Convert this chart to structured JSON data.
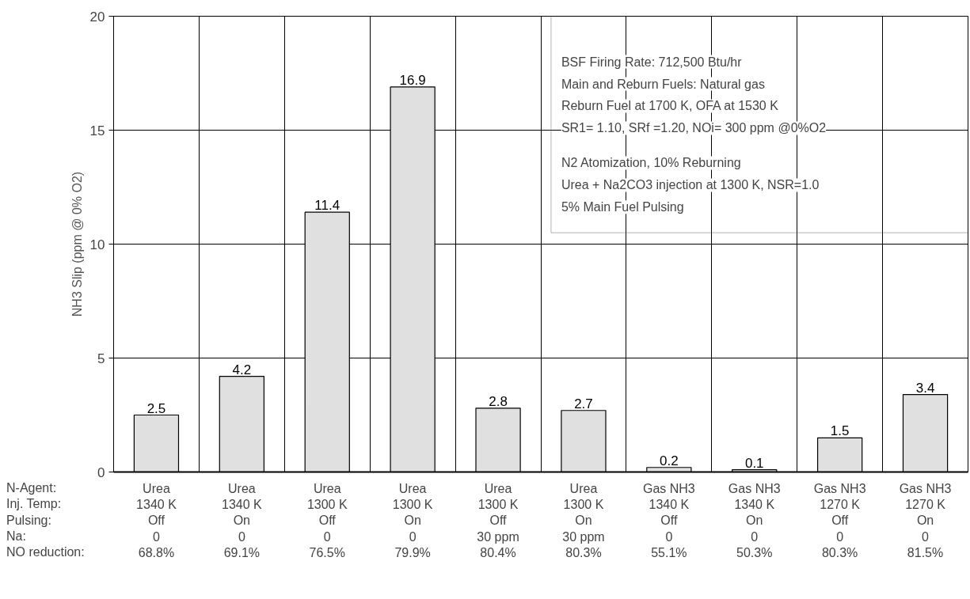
{
  "chart_data": {
    "type": "bar",
    "ylabel": "NH3 Slip (ppm @ 0% O2)",
    "xlabel": "N-Agent:\nInj. Temp:\nPulsing:\nNa:\nNO reduction:",
    "categories": [
      "Urea\n1340 K\nOff\n0\n68.8%",
      "Urea\n1340 K\nOn\n0\n69.1%",
      "Urea\n1300 K\nOff\n0\n76.5%",
      "Urea\n1300 K\nOn\n0\n79.9%",
      "Urea\n1300 K\nOff\n30 ppm\n80.4%",
      "Urea\n1300 K\nOn\n30 ppm\n80.3%",
      "Gas NH3\n1340 K\nOff\n0\n55.1%",
      "Gas NH3\n1340 K\nOn\n0\n50.3%",
      "Gas NH3\n1270 K\nOff\n0\n80.3%",
      "Gas NH3\n1270 K\nOn\n0\n81.5%"
    ],
    "values": [
      2.5,
      4.2,
      11.4,
      16.9,
      2.8,
      2.7,
      0.2,
      0.1,
      1.5,
      3.4
    ],
    "color": "#e0e0e0",
    "data_labels": true,
    "ylim": [
      0,
      20
    ],
    "yticks": [
      0,
      5,
      10,
      15,
      20
    ],
    "grid": true,
    "annotations": [
      "BSF Firing Rate: 712,500 Btu/hr",
      "Main and Reburn Fuels:  Natural gas",
      "Reburn Fuel at 1700 K, OFA  at 1530 K",
      "SR1= 1.10, SRf =1.20, NOi= 300 ppm @0%O2",
      "N2 Atomization, 10% Reburning",
      "Urea + Na2CO3 injection at 1300 K, NSR=1.0",
      "5% Main Fuel Pulsing"
    ]
  }
}
